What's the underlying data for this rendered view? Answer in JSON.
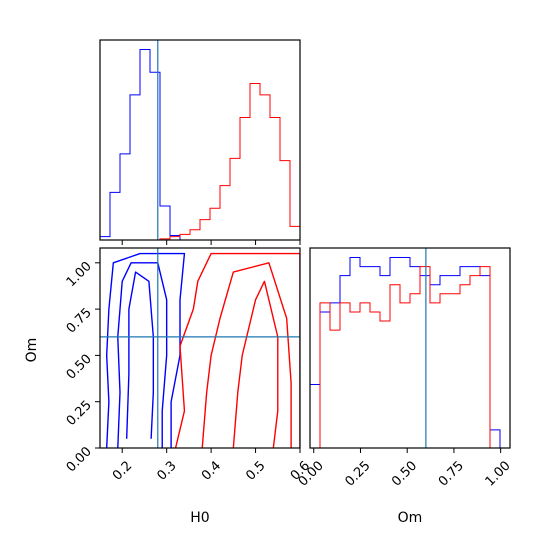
{
  "chart_data": {
    "type": "corner",
    "truth": {
      "H0": 0.28,
      "Om": 0.6
    },
    "truth_color": "#1f77b4",
    "colors": {
      "first": "#0000ff",
      "second": "#ff0000"
    },
    "panels": [
      {
        "id": "hist-H0",
        "type": "histogram",
        "xlim": [
          0.15,
          0.6
        ],
        "x_ticks": [
          0.2,
          0.3,
          0.4,
          0.5,
          0.6
        ],
        "series": [
          {
            "color": "#0000ff",
            "bin_edges": [
              0.15,
              0.1725,
              0.195,
              0.2175,
              0.24,
              0.2625,
              0.285,
              0.3075,
              0.33,
              0.3525,
              0.375,
              0.3975,
              0.42,
              0.4425,
              0.465,
              0.4875,
              0.51,
              0.5325,
              0.555,
              0.5775,
              0.6
            ],
            "density": [
              0.15,
              2.1,
              3.8,
              6.4,
              8.4,
              7.4,
              1.5,
              0.2,
              0,
              0,
              0,
              0,
              0,
              0,
              0,
              0,
              0,
              0,
              0,
              0
            ]
          },
          {
            "color": "#ff0000",
            "bin_edges": [
              0.15,
              0.1725,
              0.195,
              0.2175,
              0.24,
              0.2625,
              0.285,
              0.3075,
              0.33,
              0.3525,
              0.375,
              0.3975,
              0.42,
              0.4425,
              0.465,
              0.4875,
              0.51,
              0.5325,
              0.555,
              0.5775,
              0.6
            ],
            "density": [
              0,
              0,
              0,
              0,
              0,
              0,
              0.05,
              0.15,
              0.25,
              0.45,
              0.9,
              1.4,
              2.4,
              3.6,
              5.4,
              6.9,
              6.4,
              5.4,
              3.5,
              0.6
            ]
          }
        ]
      },
      {
        "id": "contour-H0-Om",
        "type": "contour",
        "xlabel": "H0",
        "ylabel": "Om",
        "xlim": [
          0.15,
          0.6
        ],
        "ylim": [
          0.0,
          1.08
        ],
        "x_ticks": [
          "0.2",
          "0.3",
          "0.4",
          "0.5",
          "0.6"
        ],
        "y_ticks": [
          "0.00",
          "0.25",
          "0.50",
          "0.75",
          "1.00"
        ],
        "series": [
          {
            "color": "#0000ff",
            "contours": [
              [
                [
                  0.165,
                  0.0
                ],
                [
                  0.17,
                  0.25
                ],
                [
                  0.165,
                  0.5
                ],
                [
                  0.17,
                  0.75
                ],
                [
                  0.18,
                  1.0
                ],
                [
                  0.24,
                  1.05
                ],
                [
                  0.34,
                  1.05
                ],
                [
                  0.33,
                  0.8
                ],
                [
                  0.33,
                  0.5
                ],
                [
                  0.31,
                  0.25
                ],
                [
                  0.31,
                  0.0
                ]
              ],
              [
                [
                  0.19,
                  0.0
                ],
                [
                  0.195,
                  0.3
                ],
                [
                  0.19,
                  0.6
                ],
                [
                  0.2,
                  0.9
                ],
                [
                  0.22,
                  1.0
                ],
                [
                  0.28,
                  1.0
                ],
                [
                  0.3,
                  0.8
                ],
                [
                  0.3,
                  0.5
                ],
                [
                  0.29,
                  0.2
                ],
                [
                  0.29,
                  0.0
                ]
              ],
              [
                [
                  0.21,
                  0.05
                ],
                [
                  0.215,
                  0.4
                ],
                [
                  0.215,
                  0.75
                ],
                [
                  0.23,
                  0.95
                ],
                [
                  0.26,
                  0.9
                ],
                [
                  0.27,
                  0.6
                ],
                [
                  0.27,
                  0.3
                ],
                [
                  0.265,
                  0.05
                ]
              ]
            ]
          },
          {
            "color": "#ff0000",
            "contours": [
              [
                [
                  0.32,
                  0.0
                ],
                [
                  0.34,
                  0.2
                ],
                [
                  0.33,
                  0.55
                ],
                [
                  0.36,
                  0.75
                ],
                [
                  0.37,
                  0.9
                ],
                [
                  0.4,
                  1.05
                ],
                [
                  0.6,
                  1.05
                ],
                [
                  0.6,
                  0.0
                ]
              ],
              [
                [
                  0.38,
                  0.0
                ],
                [
                  0.39,
                  0.3
                ],
                [
                  0.4,
                  0.5
                ],
                [
                  0.42,
                  0.7
                ],
                [
                  0.45,
                  0.95
                ],
                [
                  0.53,
                  1.0
                ],
                [
                  0.57,
                  0.7
                ],
                [
                  0.58,
                  0.35
                ],
                [
                  0.58,
                  0.0
                ]
              ],
              [
                [
                  0.45,
                  0.0
                ],
                [
                  0.46,
                  0.3
                ],
                [
                  0.47,
                  0.5
                ],
                [
                  0.5,
                  0.8
                ],
                [
                  0.52,
                  0.9
                ],
                [
                  0.55,
                  0.6
                ],
                [
                  0.55,
                  0.2
                ],
                [
                  0.54,
                  0.0
                ]
              ]
            ]
          }
        ]
      },
      {
        "id": "hist-Om",
        "type": "histogram",
        "xlabel": "Om",
        "xlim": [
          -0.02,
          1.05
        ],
        "x_ticks": [
          "0.00",
          "0.25",
          "0.50",
          "0.75",
          "1.00"
        ],
        "series": [
          {
            "color": "#0000ff",
            "bin_edges": [
              -0.02,
              0.0335,
              0.087,
              0.1405,
              0.194,
              0.2475,
              0.301,
              0.3545,
              0.408,
              0.4615,
              0.515,
              0.5685,
              0.622,
              0.6755,
              0.729,
              0.7825,
              0.836,
              0.8895,
              0.943,
              0.9965,
              1.05
            ],
            "density": [
              0.35,
              0.75,
              0.8,
              0.95,
              1.05,
              1.0,
              1.0,
              0.95,
              1.05,
              1.05,
              1.0,
              0.95,
              0.9,
              0.95,
              0.95,
              1.0,
              1.0,
              0.95,
              0.1,
              0.0
            ]
          },
          {
            "color": "#ff0000",
            "bin_edges": [
              -0.02,
              0.0335,
              0.087,
              0.1405,
              0.194,
              0.2475,
              0.301,
              0.3545,
              0.408,
              0.4615,
              0.515,
              0.5685,
              0.622,
              0.6755,
              0.729,
              0.7825,
              0.836,
              0.8895,
              0.943,
              0.9965,
              1.05
            ],
            "density": [
              0.0,
              0.8,
              0.65,
              0.8,
              0.75,
              0.8,
              0.75,
              0.7,
              0.9,
              0.8,
              0.85,
              1.0,
              0.8,
              0.85,
              0.85,
              0.9,
              0.95,
              1.0,
              0.0,
              0.0
            ]
          }
        ]
      }
    ]
  }
}
